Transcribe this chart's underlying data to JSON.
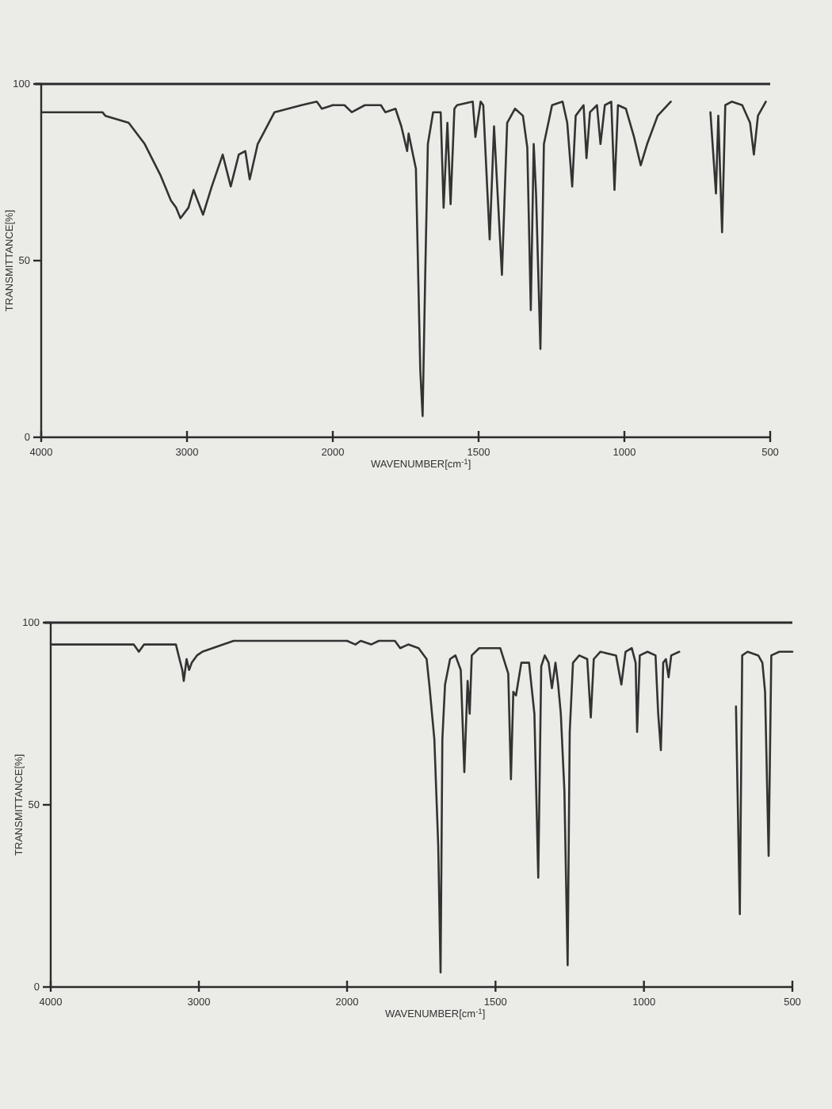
{
  "chart_data": [
    {
      "type": "line",
      "color": "#333333",
      "ylabel": "TRANSMITTANCE[%]",
      "xlim": [
        4000,
        2000
      ],
      "ylim": [
        0,
        100
      ],
      "xticks": [
        4000,
        3000,
        2000
      ],
      "yticks": [
        0,
        50,
        100
      ],
      "x": [
        4000,
        3580,
        3560,
        3400,
        3290,
        3180,
        3110,
        3075,
        3045,
        2990,
        2955,
        2890,
        2830,
        2755,
        2700,
        2645,
        2600,
        2570,
        2515,
        2400,
        2215,
        2110,
        2075,
        2000
      ],
      "values": [
        92,
        92,
        91,
        89,
        83,
        74,
        67,
        65,
        62,
        65,
        70,
        63,
        71,
        80,
        71,
        80,
        81,
        73,
        83,
        92,
        94,
        95,
        93,
        94
      ]
    },
    {
      "type": "line",
      "color": "#333333",
      "xlabel": "WAVENUMBER[cm$^{-1}$]",
      "xlim": [
        2000,
        500
      ],
      "ylim": [
        0,
        100
      ],
      "xticks": [
        1500,
        1000,
        500
      ],
      "tick_labels": "x",
      "x": [
        2000,
        1960,
        1935,
        1890,
        1835,
        1820,
        1785,
        1765,
        1745,
        1740,
        1715,
        1700,
        1692,
        1683,
        1674,
        1656,
        1630,
        1620,
        1607,
        1596,
        1583,
        1574,
        1520,
        1511,
        1493,
        1484,
        1462,
        1447,
        1420,
        1402,
        1375,
        1348,
        1333,
        1321,
        1311,
        1303,
        1288,
        1276,
        1248,
        1212,
        1196,
        1179,
        1167,
        1140,
        1130,
        1118,
        1094,
        1082,
        1067,
        1045,
        1034,
        1022,
        995,
        967,
        944,
        922,
        886,
        841,
        775,
        705,
        686,
        678,
        665,
        654,
        632,
        596,
        569,
        556,
        542,
        515
      ],
      "values": [
        94,
        94,
        92,
        94,
        94,
        92,
        93,
        88,
        81,
        86,
        76,
        19,
        6,
        46,
        83,
        92,
        92,
        65,
        89,
        66,
        93,
        94,
        95,
        85,
        95,
        94,
        56,
        88,
        46,
        89,
        93,
        91,
        82,
        36,
        83,
        69,
        25,
        83,
        94,
        95,
        89,
        71,
        91,
        94,
        79,
        92,
        94,
        83,
        94,
        95,
        70,
        94,
        93,
        85,
        77,
        83,
        91,
        95,
        null,
        92,
        69,
        91,
        58,
        94,
        95,
        94,
        89,
        80,
        91,
        95
      ]
    },
    {
      "type": "line",
      "color": "#333333",
      "ylabel": "TRANSMITTANCE[%]",
      "xlim": [
        4000,
        2000
      ],
      "ylim": [
        0,
        100
      ],
      "xticks": [
        4000,
        3000,
        2000
      ],
      "yticks": [
        0,
        50,
        100
      ],
      "x": [
        4000,
        3440,
        3405,
        3370,
        3155,
        3137,
        3112,
        3102,
        3083,
        3066,
        3048,
        3013,
        2977,
        2835,
        2765,
        2195,
        2015,
        2000
      ],
      "values": [
        94,
        94,
        92,
        94,
        94,
        91,
        87,
        84,
        90,
        87,
        89,
        91,
        92,
        94,
        95,
        95,
        95,
        95
      ]
    },
    {
      "type": "line",
      "color": "#333333",
      "xlabel": "WAVENUMBER[cm$^{-1}$]",
      "xlim": [
        2000,
        500
      ],
      "ylim": [
        0,
        100
      ],
      "xticks": [
        1500,
        1000,
        500
      ],
      "tick_labels": "x",
      "x": [
        2000,
        1972,
        1954,
        1919,
        1893,
        1839,
        1821,
        1794,
        1759,
        1732,
        1723,
        1706,
        1693,
        1685,
        1679,
        1670,
        1653,
        1635,
        1617,
        1605,
        1594,
        1587,
        1580,
        1555,
        1484,
        1457,
        1448,
        1440,
        1431,
        1413,
        1387,
        1369,
        1356,
        1346,
        1334,
        1321,
        1310,
        1298,
        1289,
        1280,
        1268,
        1257,
        1250,
        1239,
        1218,
        1191,
        1179,
        1169,
        1147,
        1094,
        1076,
        1062,
        1041,
        1028,
        1023,
        1014,
        988,
        961,
        952,
        943,
        935,
        926,
        917,
        908,
        881,
        785,
        690,
        677,
        669,
        651,
        615,
        601,
        592,
        580,
        571,
        544,
        500
      ],
      "values": [
        95,
        94,
        95,
        94,
        95,
        95,
        93,
        94,
        93,
        90,
        83,
        68,
        39,
        4,
        68,
        83,
        90,
        91,
        87,
        59,
        84,
        75,
        91,
        93,
        93,
        86,
        57,
        81,
        80,
        89,
        89,
        75,
        30,
        88,
        91,
        89,
        82,
        89,
        83,
        75,
        54,
        6,
        70,
        89,
        91,
        90,
        74,
        90,
        92,
        91,
        83,
        92,
        93,
        89,
        70,
        91,
        92,
        91,
        75,
        65,
        89,
        90,
        85,
        91,
        92,
        null,
        77,
        20,
        91,
        92,
        91,
        89,
        81,
        36,
        91,
        92,
        92
      ]
    }
  ]
}
